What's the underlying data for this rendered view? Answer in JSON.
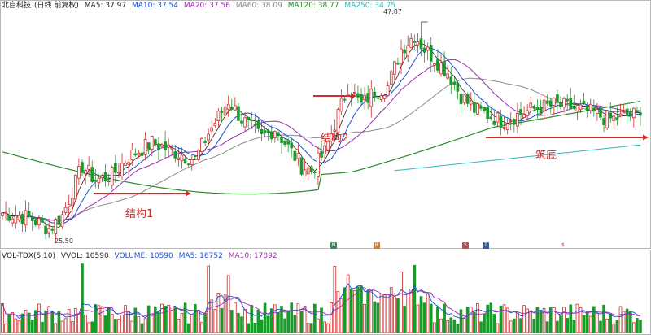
{
  "header": {
    "stock_name": "北自科技",
    "adjust": "(日线 前复权)",
    "ma_items": [
      {
        "label": "MA5: 37.97",
        "color": "#222222"
      },
      {
        "label": "MA10: 37.54",
        "color": "#1a4fd6"
      },
      {
        "label": "MA20: 37.56",
        "color": "#9b2fb0"
      },
      {
        "label": "MA60: 38.09",
        "color": "#8a8a8a"
      },
      {
        "label": "MA120: 38.77",
        "color": "#2a8a2a"
      },
      {
        "label": "MA250: 34.75",
        "color": "#2cb8b8"
      }
    ]
  },
  "vol_header": {
    "items": [
      {
        "label": "VOL-TDX(5,10)",
        "color": "#222222"
      },
      {
        "label": "VVOL: 10590",
        "color": "#222222"
      },
      {
        "label": "VOLUME: 10590",
        "color": "#1a4fd6"
      },
      {
        "label": "MA5: 16752",
        "color": "#1a4fd6"
      },
      {
        "label": "MA10: 17892",
        "color": "#9b2fb0"
      }
    ]
  },
  "annotations": {
    "structure1": "结构1",
    "structure2": "结构2",
    "bottom": "筑底",
    "high": "47.87",
    "low": "25.50"
  },
  "chart_data": {
    "type": "candlestick",
    "title": "北自科技(日线 前复权)",
    "price_range": [
      24,
      49
    ],
    "high_label": 47.87,
    "low_label": 25.5,
    "colors": {
      "up": "#d12b2b",
      "down": "#1a9a2a",
      "ma5": "#222222",
      "ma10": "#1a4fd6",
      "ma20": "#9b2fb0",
      "ma60": "#8a8a8a",
      "ma120": "#2a8a2a",
      "ma250": "#2cb8b8",
      "arrow": "#d12b2b"
    },
    "close_anchors": [
      [
        0,
        27.5
      ],
      [
        8,
        27.0
      ],
      [
        14,
        25.8
      ],
      [
        18,
        27.2
      ],
      [
        24,
        32.5
      ],
      [
        28,
        31.0
      ],
      [
        33,
        31.5
      ],
      [
        38,
        33.5
      ],
      [
        45,
        35.0
      ],
      [
        52,
        34.0
      ],
      [
        58,
        33.2
      ],
      [
        62,
        36.0
      ],
      [
        68,
        39.5
      ],
      [
        72,
        37.5
      ],
      [
        78,
        35.5
      ],
      [
        82,
        36.5
      ],
      [
        86,
        34.5
      ],
      [
        90,
        32.5
      ],
      [
        93,
        32.0
      ],
      [
        97,
        34.0
      ],
      [
        100,
        37.0
      ],
      [
        104,
        41.0
      ],
      [
        108,
        39.0
      ],
      [
        112,
        40.5
      ],
      [
        116,
        41.0
      ],
      [
        120,
        45.0
      ],
      [
        124,
        46.5
      ],
      [
        127,
        45.0
      ],
      [
        130,
        44.0
      ],
      [
        134,
        42.5
      ],
      [
        138,
        40.0
      ],
      [
        142,
        38.5
      ],
      [
        146,
        38.0
      ],
      [
        150,
        37.3
      ],
      [
        154,
        37.8
      ],
      [
        160,
        38.6
      ],
      [
        166,
        39.0
      ],
      [
        172,
        38.7
      ],
      [
        178,
        38.1
      ],
      [
        182,
        37.5
      ],
      [
        186,
        37.6
      ],
      [
        189,
        38.0
      ],
      [
        192,
        37.9
      ]
    ],
    "ma_values": {
      "MA5": 37.97,
      "MA10": 37.54,
      "MA20": 37.56,
      "MA60": 38.09,
      "MA120": 38.77,
      "MA250": 34.75
    },
    "volume_ma": {
      "VOLUME": 10590,
      "MA5": 16752,
      "MA10": 17892
    }
  }
}
